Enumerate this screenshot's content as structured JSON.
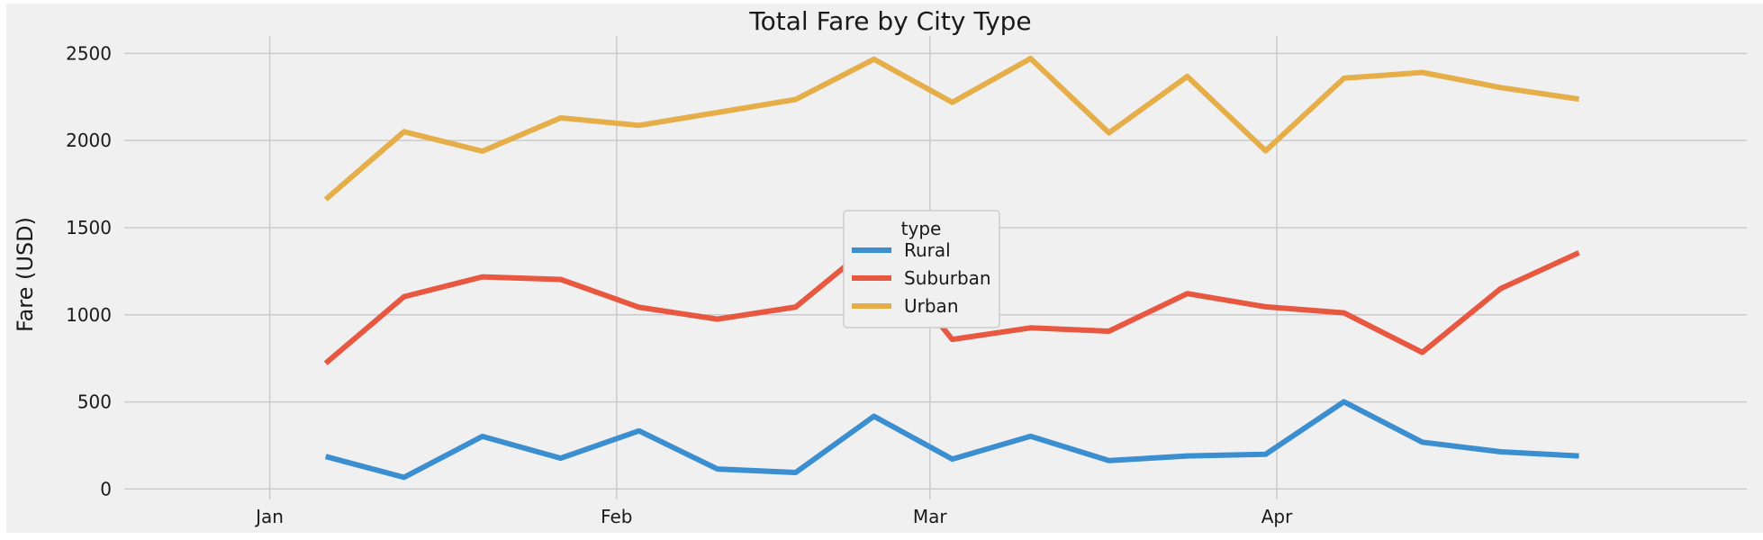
{
  "chart_data": {
    "type": "line",
    "title": "Total Fare by City Type",
    "xlabel": "",
    "ylabel": "Fare (USD)",
    "x": [
      "2019-01-06",
      "2019-01-13",
      "2019-01-20",
      "2019-01-27",
      "2019-02-03",
      "2019-02-10",
      "2019-02-17",
      "2019-02-24",
      "2019-03-03",
      "2019-03-10",
      "2019-03-17",
      "2019-03-24",
      "2019-03-31",
      "2019-04-07",
      "2019-04-14",
      "2019-04-21",
      "2019-04-28"
    ],
    "x_ticks": [
      "Jan",
      "Feb",
      "Mar",
      "Apr"
    ],
    "x_tick_dates": [
      "2019-01-01",
      "2019-02-01",
      "2019-03-01",
      "2019-04-01"
    ],
    "xlim": [
      "2018-12-19",
      "2019-05-13"
    ],
    "y_ticks": [
      0,
      500,
      1000,
      1500,
      2000,
      2500
    ],
    "ylim": [
      -60,
      2600
    ],
    "grid": true,
    "legend": {
      "title": "type",
      "placement": "center"
    },
    "series": [
      {
        "name": "Rural",
        "color": "#3b8ed0",
        "values": [
          187,
          67,
          302,
          177,
          334,
          115,
          95,
          418,
          172,
          303,
          163,
          190,
          200,
          501,
          269,
          214,
          190
        ]
      },
      {
        "name": "Suburban",
        "color": "#e8573f",
        "values": [
          722,
          1104,
          1218,
          1203,
          1043,
          975,
          1045,
          1413,
          859,
          925,
          906,
          1122,
          1046,
          1011,
          784,
          1150,
          1356
        ]
      },
      {
        "name": "Urban",
        "color": "#e5ae48",
        "values": [
          1662,
          2051,
          1939,
          2130,
          2087,
          2161,
          2236,
          2467,
          2219,
          2471,
          2044,
          2368,
          1941,
          2358,
          2391,
          2304,
          2238
        ]
      }
    ]
  }
}
